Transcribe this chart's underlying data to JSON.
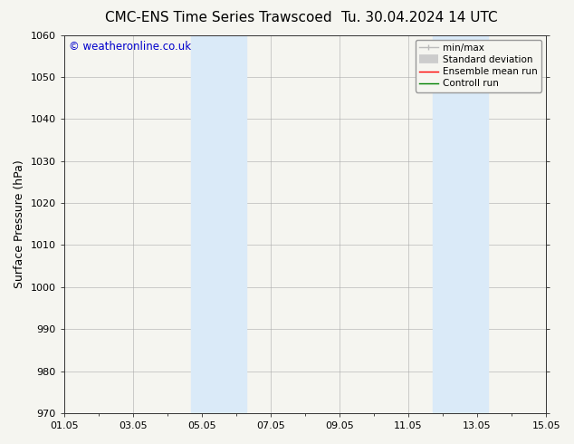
{
  "title_left": "CMC-ENS Time Series Trawscoed",
  "title_right": "Tu. 30.04.2024 14 UTC",
  "ylabel": "Surface Pressure (hPa)",
  "ylim": [
    970,
    1060
  ],
  "yticks": [
    970,
    980,
    990,
    1000,
    1010,
    1020,
    1030,
    1040,
    1050,
    1060
  ],
  "xlim_start": 0.0,
  "xlim_end": 14.0,
  "xtick_labels": [
    "01.05",
    "03.05",
    "05.05",
    "07.05",
    "09.05",
    "11.05",
    "13.05",
    "15.05"
  ],
  "xtick_positions": [
    0,
    2,
    4,
    6,
    8,
    10,
    12,
    14
  ],
  "shaded_bands": [
    {
      "xmin": 3.7,
      "xmax": 5.3,
      "color": "#daeaf8"
    },
    {
      "xmin": 10.7,
      "xmax": 12.3,
      "color": "#daeaf8"
    }
  ],
  "watermark_text": "© weatheronline.co.uk",
  "watermark_color": "#0000cc",
  "legend_entries": [
    {
      "label": "min/max",
      "color": "#bbbbbb",
      "linewidth": 1.0
    },
    {
      "label": "Standard deviation",
      "color": "#cccccc",
      "linewidth": 7
    },
    {
      "label": "Ensemble mean run",
      "color": "red",
      "linewidth": 1.0
    },
    {
      "label": "Controll run",
      "color": "green",
      "linewidth": 1.0
    }
  ],
  "background_color": "#f5f5f0",
  "plot_bg_color": "#f5f5f0",
  "title_fontsize": 11,
  "tick_fontsize": 8,
  "ylabel_fontsize": 9,
  "legend_fontsize": 7.5
}
